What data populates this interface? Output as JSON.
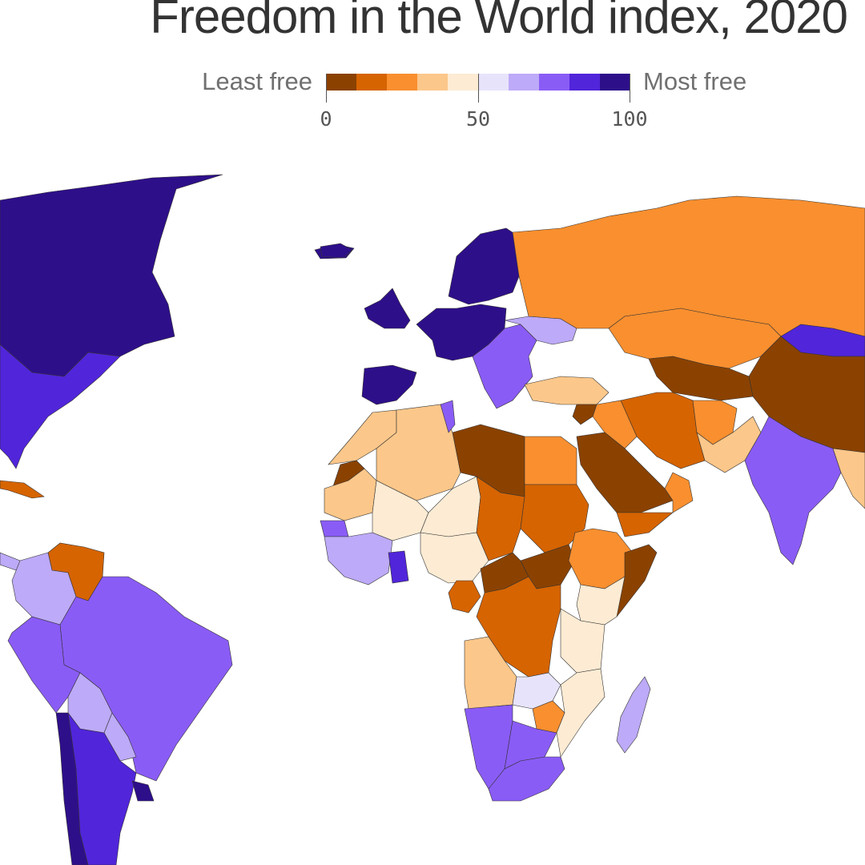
{
  "title": "Freedom in the World index, 2020",
  "legend": {
    "min_label": "Least free",
    "max_label": "Most free",
    "ticks": [
      "0",
      "50",
      "100"
    ],
    "colors": [
      "#8b4200",
      "#d66400",
      "#f98f2f",
      "#fcc78a",
      "#fdebd3",
      "#e7e3fb",
      "#bdaaf8",
      "#8a5cf6",
      "#5125da",
      "#2e0f8a"
    ]
  },
  "map": {
    "regions": [
      {
        "name": "canada",
        "score": 98
      },
      {
        "name": "united-states",
        "score": 83
      },
      {
        "name": "greenland",
        "score": 98
      },
      {
        "name": "mexico-central",
        "score": 62
      },
      {
        "name": "cuba",
        "score": 13
      },
      {
        "name": "venezuela",
        "score": 16
      },
      {
        "name": "colombia",
        "score": 65
      },
      {
        "name": "brazil",
        "score": 74
      },
      {
        "name": "peru",
        "score": 72
      },
      {
        "name": "bolivia",
        "score": 66
      },
      {
        "name": "paraguay",
        "score": 65
      },
      {
        "name": "argentina",
        "score": 85
      },
      {
        "name": "chile",
        "score": 90
      },
      {
        "name": "uruguay",
        "score": 98
      },
      {
        "name": "iceland",
        "score": 94
      },
      {
        "name": "uk-ireland",
        "score": 94
      },
      {
        "name": "scandinavia",
        "score": 100
      },
      {
        "name": "western-europe",
        "score": 93
      },
      {
        "name": "iberia",
        "score": 94
      },
      {
        "name": "eastern-europe",
        "score": 70
      },
      {
        "name": "ukraine",
        "score": 60
      },
      {
        "name": "russia",
        "score": 20
      },
      {
        "name": "kazakhstan",
        "score": 23
      },
      {
        "name": "mongolia",
        "score": 84
      },
      {
        "name": "china",
        "score": 9
      },
      {
        "name": "turkey",
        "score": 32
      },
      {
        "name": "iran",
        "score": 16
      },
      {
        "name": "central-asia",
        "score": 5
      },
      {
        "name": "afghanistan",
        "score": 27
      },
      {
        "name": "pakistan",
        "score": 38
      },
      {
        "name": "india",
        "score": 71
      },
      {
        "name": "saudi-arabia",
        "score": 7
      },
      {
        "name": "yemen",
        "score": 11
      },
      {
        "name": "oman",
        "score": 23
      },
      {
        "name": "iraq",
        "score": 29
      },
      {
        "name": "syria",
        "score": 1
      },
      {
        "name": "egypt",
        "score": 21
      },
      {
        "name": "libya",
        "score": 9
      },
      {
        "name": "algeria",
        "score": 34
      },
      {
        "name": "morocco",
        "score": 37
      },
      {
        "name": "western-sahara",
        "score": 4
      },
      {
        "name": "tunisia",
        "score": 70
      },
      {
        "name": "mauritania",
        "score": 35
      },
      {
        "name": "mali",
        "score": 41
      },
      {
        "name": "niger",
        "score": 48
      },
      {
        "name": "chad",
        "score": 17
      },
      {
        "name": "sudan",
        "score": 17
      },
      {
        "name": "south-sudan",
        "score": 2
      },
      {
        "name": "ethiopia",
        "score": 24
      },
      {
        "name": "somalia",
        "score": 7
      },
      {
        "name": "kenya",
        "score": 48
      },
      {
        "name": "nigeria",
        "score": 47
      },
      {
        "name": "senegal",
        "score": 71
      },
      {
        "name": "ghana",
        "score": 82
      },
      {
        "name": "west-africa",
        "score": 60
      },
      {
        "name": "cameroon",
        "score": 16
      },
      {
        "name": "car",
        "score": 9
      },
      {
        "name": "congo-drc",
        "score": 18
      },
      {
        "name": "angola",
        "score": 31
      },
      {
        "name": "tanzania",
        "score": 40
      },
      {
        "name": "zambia",
        "score": 54
      },
      {
        "name": "zimbabwe",
        "score": 28
      },
      {
        "name": "mozambique",
        "score": 43
      },
      {
        "name": "namibia",
        "score": 77
      },
      {
        "name": "botswana",
        "score": 72
      },
      {
        "name": "south-africa",
        "score": 79
      },
      {
        "name": "madagascar",
        "score": 61
      },
      {
        "name": "southeast-asia",
        "score": 30
      }
    ]
  }
}
